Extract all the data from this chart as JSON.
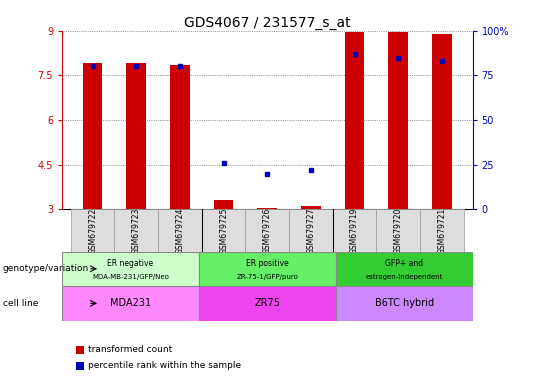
{
  "title": "GDS4067 / 231577_s_at",
  "samples": [
    "GSM679722",
    "GSM679723",
    "GSM679724",
    "GSM679725",
    "GSM679726",
    "GSM679727",
    "GSM679719",
    "GSM679720",
    "GSM679721"
  ],
  "transformed_counts": [
    7.9,
    7.9,
    7.85,
    3.3,
    3.05,
    3.1,
    8.95,
    8.95,
    8.9
  ],
  "percentile_ranks": [
    80,
    80,
    80,
    26,
    20,
    22,
    87,
    85,
    83
  ],
  "ylim": [
    3.0,
    9.0
  ],
  "yticks": [
    3,
    4.5,
    6,
    7.5,
    9
  ],
  "ytick_labels_left": [
    "3",
    "4.5",
    "6",
    "7.5",
    "9"
  ],
  "ytick_labels_right": [
    "0",
    "25",
    "50",
    "75",
    "100%"
  ],
  "bar_color": "#cc0000",
  "dot_color": "#0000bb",
  "grid_color": "#444444",
  "geno_colors": [
    "#ccffcc",
    "#66ee66",
    "#33cc33"
  ],
  "cell_colors": [
    "#ff88ff",
    "#ee44ee",
    "#cc88ff"
  ],
  "groups": [
    {
      "label": "ER negative\nMDA-MB-231/GFP/Neo",
      "cell_line": "MDA231",
      "start": 0,
      "end": 3
    },
    {
      "label": "ER positive\nZR-75-1/GFP/puro",
      "cell_line": "ZR75",
      "start": 3,
      "end": 6
    },
    {
      "label": "GFP+ and\nestrogen-independent",
      "cell_line": "B6TC hybrid",
      "start": 6,
      "end": 9
    }
  ],
  "legend_bar_label": "transformed count",
  "legend_dot_label": "percentile rank within the sample",
  "left_label_geno": "genotype/variation",
  "left_label_cell": "cell line",
  "title_fontsize": 10,
  "tick_fontsize": 7,
  "bar_width": 0.45
}
